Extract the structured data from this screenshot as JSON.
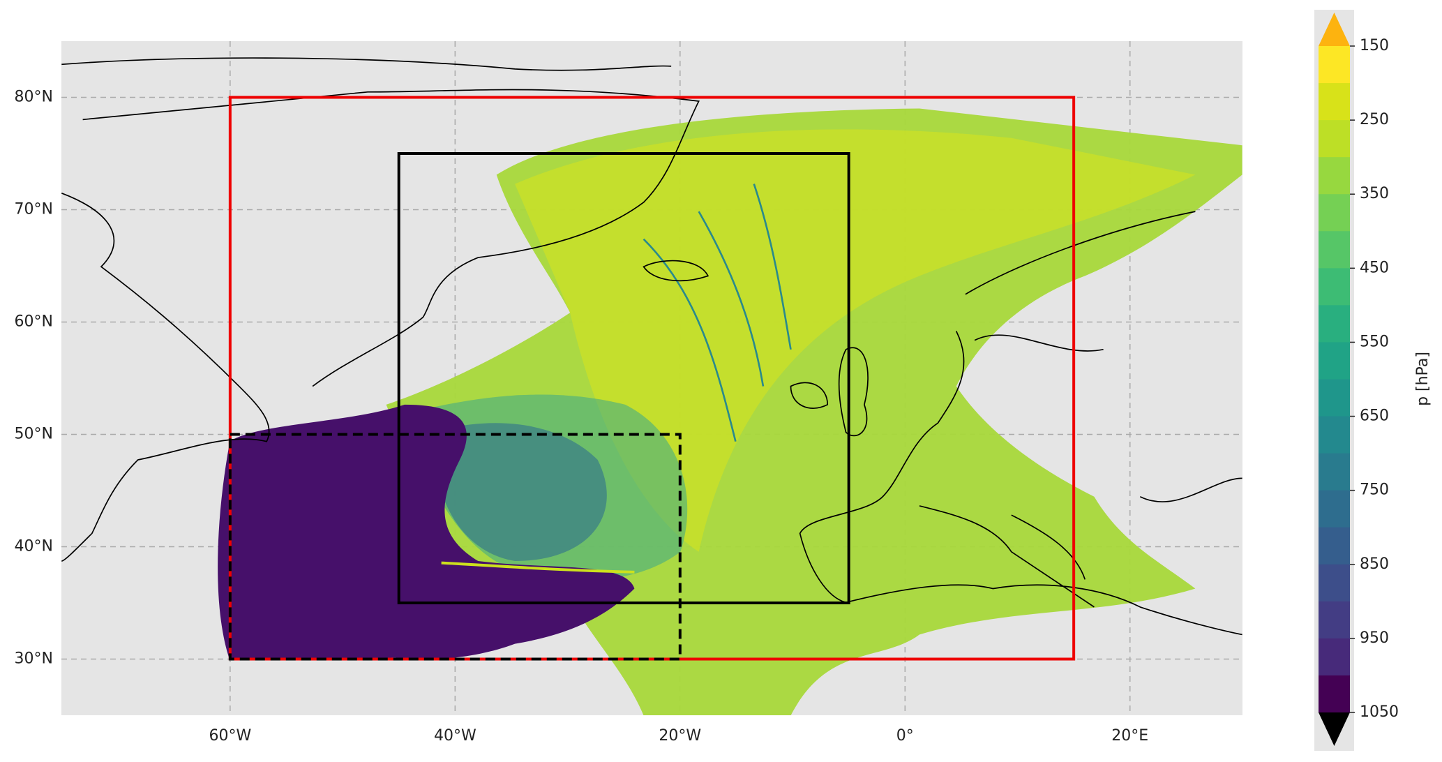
{
  "map": {
    "xlim": [
      -75,
      30
    ],
    "ylim": [
      25,
      85
    ],
    "xticks": [
      {
        "value": -60,
        "label": "60°W"
      },
      {
        "value": -40,
        "label": "40°W"
      },
      {
        "value": -20,
        "label": "20°W"
      },
      {
        "value": 0,
        "label": "0°"
      },
      {
        "value": 20,
        "label": "20°E"
      }
    ],
    "yticks": [
      {
        "value": 30,
        "label": "30°N"
      },
      {
        "value": 40,
        "label": "40°N"
      },
      {
        "value": 50,
        "label": "50°N"
      },
      {
        "value": 60,
        "label": "60°N"
      },
      {
        "value": 70,
        "label": "70°N"
      },
      {
        "value": 80,
        "label": "80°N"
      }
    ],
    "grid": true,
    "boxes": [
      {
        "lon": [
          -60,
          15
        ],
        "lat": [
          30,
          80
        ],
        "color": "#ee0000",
        "style": "solid"
      },
      {
        "lon": [
          -45,
          -5
        ],
        "lat": [
          35,
          75
        ],
        "color": "#000000",
        "style": "solid"
      },
      {
        "lon": [
          -60,
          -20
        ],
        "lat": [
          30,
          50
        ],
        "color": "#000000",
        "style": "dashed"
      }
    ]
  },
  "colorbar": {
    "label": "p [hPa]",
    "lim": [
      150,
      1050
    ],
    "ticks": [
      150,
      250,
      350,
      450,
      550,
      650,
      750,
      850,
      950,
      1050
    ],
    "levels": [
      150,
      200,
      250,
      300,
      350,
      400,
      450,
      500,
      550,
      600,
      650,
      700,
      750,
      800,
      850,
      900,
      950,
      1000,
      1050
    ],
    "colors": [
      "#fde725",
      "#d8e219",
      "#bddf26",
      "#97d83f",
      "#75d054",
      "#56c667",
      "#3dbc74",
      "#29af7f",
      "#20a386",
      "#1f968b",
      "#23898e",
      "#297b8e",
      "#2e6d8e",
      "#355e8d",
      "#3d4e8a",
      "#433d84",
      "#472a7a",
      "#440154"
    ],
    "over_color": "#fdb30f",
    "under_color": "#000000"
  }
}
